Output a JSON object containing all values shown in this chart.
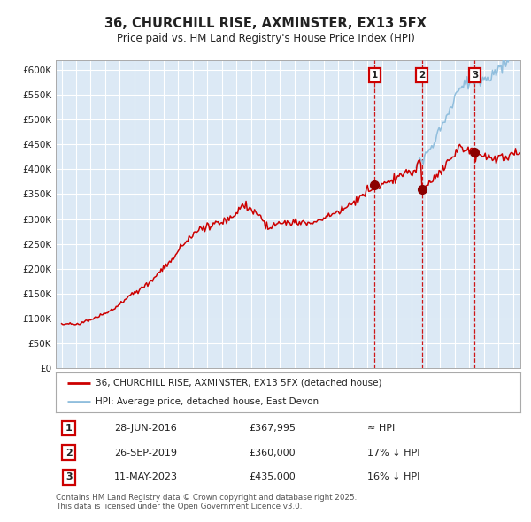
{
  "title_line1": "36, CHURCHILL RISE, AXMINSTER, EX13 5FX",
  "title_line2": "Price paid vs. HM Land Registry's House Price Index (HPI)",
  "background_color": "#ffffff",
  "plot_bg_color": "#dce9f5",
  "hpi_color": "#90bedd",
  "price_color": "#cc0000",
  "grid_color": "#ffffff",
  "purchase_dates_num": [
    2016.497,
    2019.748,
    2023.37
  ],
  "purchase_prices": [
    367995,
    360000,
    435000
  ],
  "purchase_labels": [
    "1",
    "2",
    "3"
  ],
  "purchase_labels_info": [
    {
      "label": "1",
      "date": "28-JUN-2016",
      "price": "£367,995",
      "vs_hpi": "≈ HPI"
    },
    {
      "label": "2",
      "date": "26-SEP-2019",
      "price": "£360,000",
      "vs_hpi": "17% ↓ HPI"
    },
    {
      "label": "3",
      "date": "11-MAY-2023",
      "price": "£435,000",
      "vs_hpi": "16% ↓ HPI"
    }
  ],
  "legend_entries": [
    "36, CHURCHILL RISE, AXMINSTER, EX13 5FX (detached house)",
    "HPI: Average price, detached house, East Devon"
  ],
  "footer_text": "Contains HM Land Registry data © Crown copyright and database right 2025.\nThis data is licensed under the Open Government Licence v3.0.",
  "ylim": [
    0,
    620000
  ],
  "yticks": [
    0,
    50000,
    100000,
    150000,
    200000,
    250000,
    300000,
    350000,
    400000,
    450000,
    500000,
    550000,
    600000
  ],
  "ytick_labels": [
    "£0",
    "£50K",
    "£100K",
    "£150K",
    "£200K",
    "£250K",
    "£300K",
    "£350K",
    "£400K",
    "£450K",
    "£500K",
    "£550K",
    "£600K"
  ],
  "xlim_left": 1994.6,
  "xlim_right": 2026.5,
  "marker_color": "#8b0000",
  "vline_color": "#cc0000"
}
